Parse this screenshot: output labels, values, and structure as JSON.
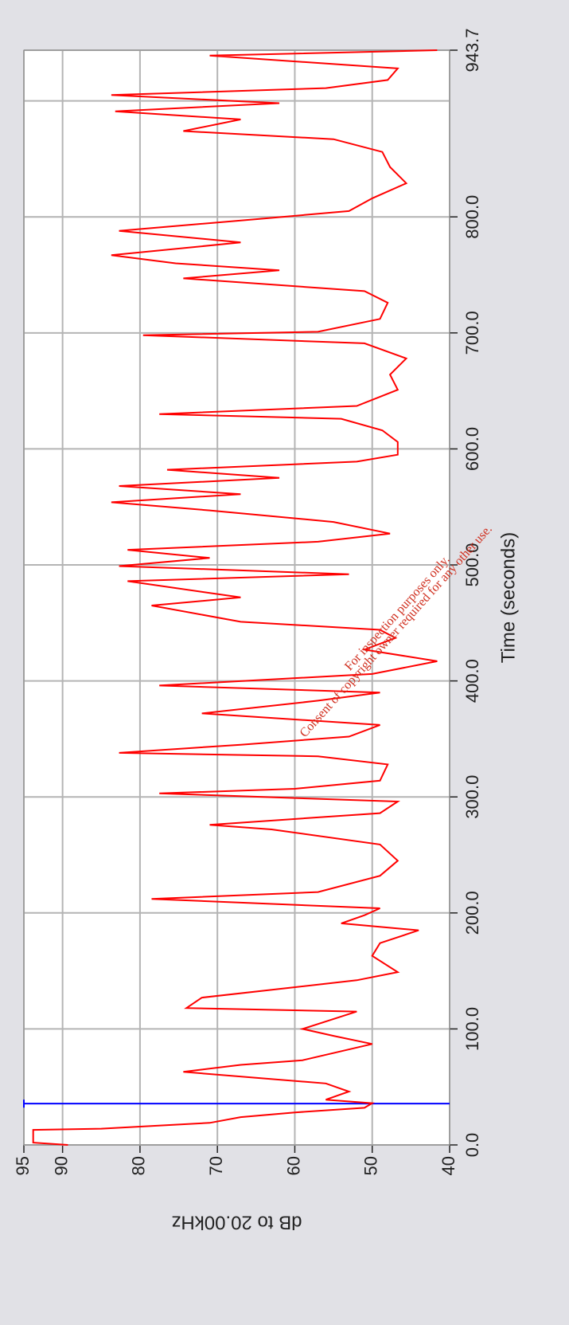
{
  "chart_data": {
    "type": "line",
    "xlabel": "Time (seconds)",
    "ylabel": "dB to 20.00kHz",
    "annotations": [
      "For inspection purposes only.",
      "Consent of copyright owner required for any other use."
    ],
    "x": [
      0,
      2,
      13,
      14,
      19,
      24,
      28,
      32,
      36,
      39,
      46,
      53,
      63,
      69,
      73,
      87,
      94,
      100,
      115,
      118,
      127,
      142,
      149,
      163,
      174,
      185,
      191,
      198,
      204,
      212,
      218,
      232,
      245,
      259,
      272,
      276,
      286,
      296,
      303,
      307,
      314,
      328,
      335,
      338,
      345,
      352,
      362,
      372,
      383,
      390,
      396,
      406,
      417,
      427,
      437,
      444,
      451,
      465,
      472,
      486,
      492,
      499,
      506,
      513,
      520,
      527,
      537,
      547,
      554,
      561,
      568,
      575,
      582,
      589,
      595,
      606,
      616,
      626,
      630,
      637,
      651,
      664,
      678,
      691,
      698,
      701,
      712,
      726,
      736,
      747,
      754,
      760,
      767,
      778,
      788,
      798,
      805,
      816,
      829,
      843,
      856,
      867,
      874,
      884,
      891,
      898,
      905,
      911,
      918,
      928,
      939,
      943.7
    ],
    "series": [
      {
        "name": "dB",
        "color": "#ff0000",
        "values": [
          89.3,
          93.8,
          93.8,
          85,
          71,
          67,
          60,
          51,
          50,
          56,
          53,
          56,
          74.4,
          67,
          59,
          50,
          55,
          59,
          52,
          74,
          72,
          52,
          46.7,
          50,
          49,
          44,
          54,
          51,
          49,
          78.5,
          57,
          49,
          46.7,
          49,
          63,
          71,
          49,
          46.7,
          77.5,
          60,
          49,
          48,
          57,
          82.7,
          67,
          53,
          49,
          72,
          57,
          49,
          77.5,
          50,
          41.6,
          51,
          47,
          49,
          67,
          78.5,
          67,
          81.6,
          53,
          82.7,
          71,
          81.6,
          57,
          47.7,
          55,
          71,
          83.7,
          67,
          82.7,
          62,
          76.5,
          52,
          46.7,
          46.7,
          48.7,
          54,
          77.5,
          52,
          46.7,
          47.7,
          45.6,
          51,
          79.6,
          57,
          49,
          48,
          51,
          74.4,
          62,
          75.4,
          83.7,
          67,
          82.7,
          65,
          53,
          50,
          45.6,
          47.7,
          48.7,
          55,
          74.4,
          67,
          83.2,
          62,
          83.7,
          56,
          48,
          46.7,
          71,
          41.6
        ]
      }
    ],
    "cursor_x": 35.6,
    "cursor_color": "#0000ff",
    "xlim": [
      0,
      943.7
    ],
    "xticks": [
      {
        "value": 0,
        "label": "0.0"
      },
      {
        "value": 100,
        "label": "100.0"
      },
      {
        "value": 200,
        "label": "200.0"
      },
      {
        "value": 300,
        "label": "300.0"
      },
      {
        "value": 400,
        "label": "400.0"
      },
      {
        "value": 500,
        "label": "500.0"
      },
      {
        "value": 600,
        "label": "600.0"
      },
      {
        "value": 700,
        "label": "700.0"
      },
      {
        "value": 800,
        "label": "800.0"
      },
      {
        "value": 900,
        "label": null
      },
      {
        "value": 943.7,
        "label": "943.7"
      }
    ],
    "ylim": [
      40,
      95
    ],
    "yticks": [
      40,
      50,
      60,
      70,
      80,
      90,
      95
    ],
    "grid": true
  }
}
